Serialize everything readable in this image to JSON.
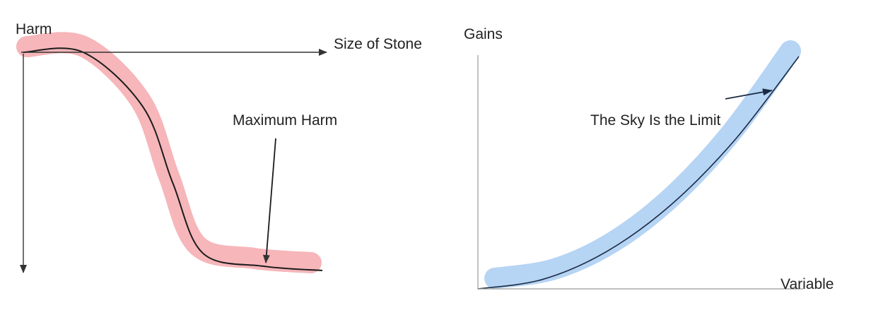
{
  "chart_data": [
    {
      "type": "line",
      "id": "harm-chart",
      "title": "",
      "xlabel": "Size of Stone",
      "ylabel": "Harm",
      "y_direction": "down",
      "ticks": "none",
      "grid": false,
      "annotation": "Maximum Harm",
      "series": [
        {
          "x": [
            0.0,
            0.2,
            0.4,
            0.5,
            0.6,
            0.8,
            1.0
          ],
          "y": [
            0.0,
            0.0,
            0.25,
            0.6,
            0.92,
            0.98,
            1.0
          ]
        }
      ],
      "highlight_color": "#f4a9ae",
      "line_color": "#1b1b1b",
      "axis_color": "#333333"
    },
    {
      "type": "line",
      "id": "gains-chart",
      "title": "",
      "xlabel": "Variable",
      "ylabel": "Gains",
      "ticks": "none",
      "grid": false,
      "annotation": "The Sky Is the Limit",
      "series": [
        {
          "x": [
            0.0,
            0.2,
            0.4,
            0.6,
            0.8,
            1.0
          ],
          "y": [
            0.0,
            0.04,
            0.16,
            0.36,
            0.64,
            1.0
          ]
        }
      ],
      "highlight_color": "#a9cdf2",
      "line_color": "#1b2a44",
      "axis_color": "#999999"
    }
  ]
}
